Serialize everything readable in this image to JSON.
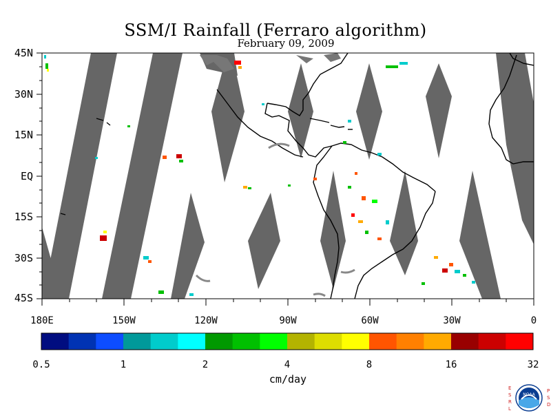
{
  "title": "SSM/I Rainfall (Ferraro algorithm)",
  "subtitle": "February 09, 2009",
  "lat_labels": [
    "45N",
    "30N",
    "15N",
    "EQ",
    "15S",
    "30S",
    "45S"
  ],
  "lon_labels": [
    "180E",
    "150W",
    "120W",
    "90W",
    "60W",
    "30W",
    "0"
  ],
  "colorbar": {
    "colors": [
      "#000d80",
      "#0033b3",
      "#0d4dff",
      "#00999a",
      "#00cccc",
      "#00ffff",
      "#009900",
      "#00c000",
      "#00ff00",
      "#b3b300",
      "#dddd00",
      "#ffff00",
      "#ff5500",
      "#ff8000",
      "#ffaa00",
      "#990000",
      "#cc0000",
      "#ff0000"
    ],
    "tick_labels": [
      "0.5",
      "1",
      "2",
      "4",
      "8",
      "16",
      "32"
    ],
    "units": "cm/day"
  },
  "colors": {
    "swath_gap": "#666666",
    "coastline": "#000000",
    "land_background": "#ffffff"
  },
  "logo": {
    "left_letters": [
      "E",
      "S",
      "R",
      "L"
    ],
    "right_letters": [
      "P",
      "S",
      "D"
    ],
    "center_text": "NOAA"
  }
}
